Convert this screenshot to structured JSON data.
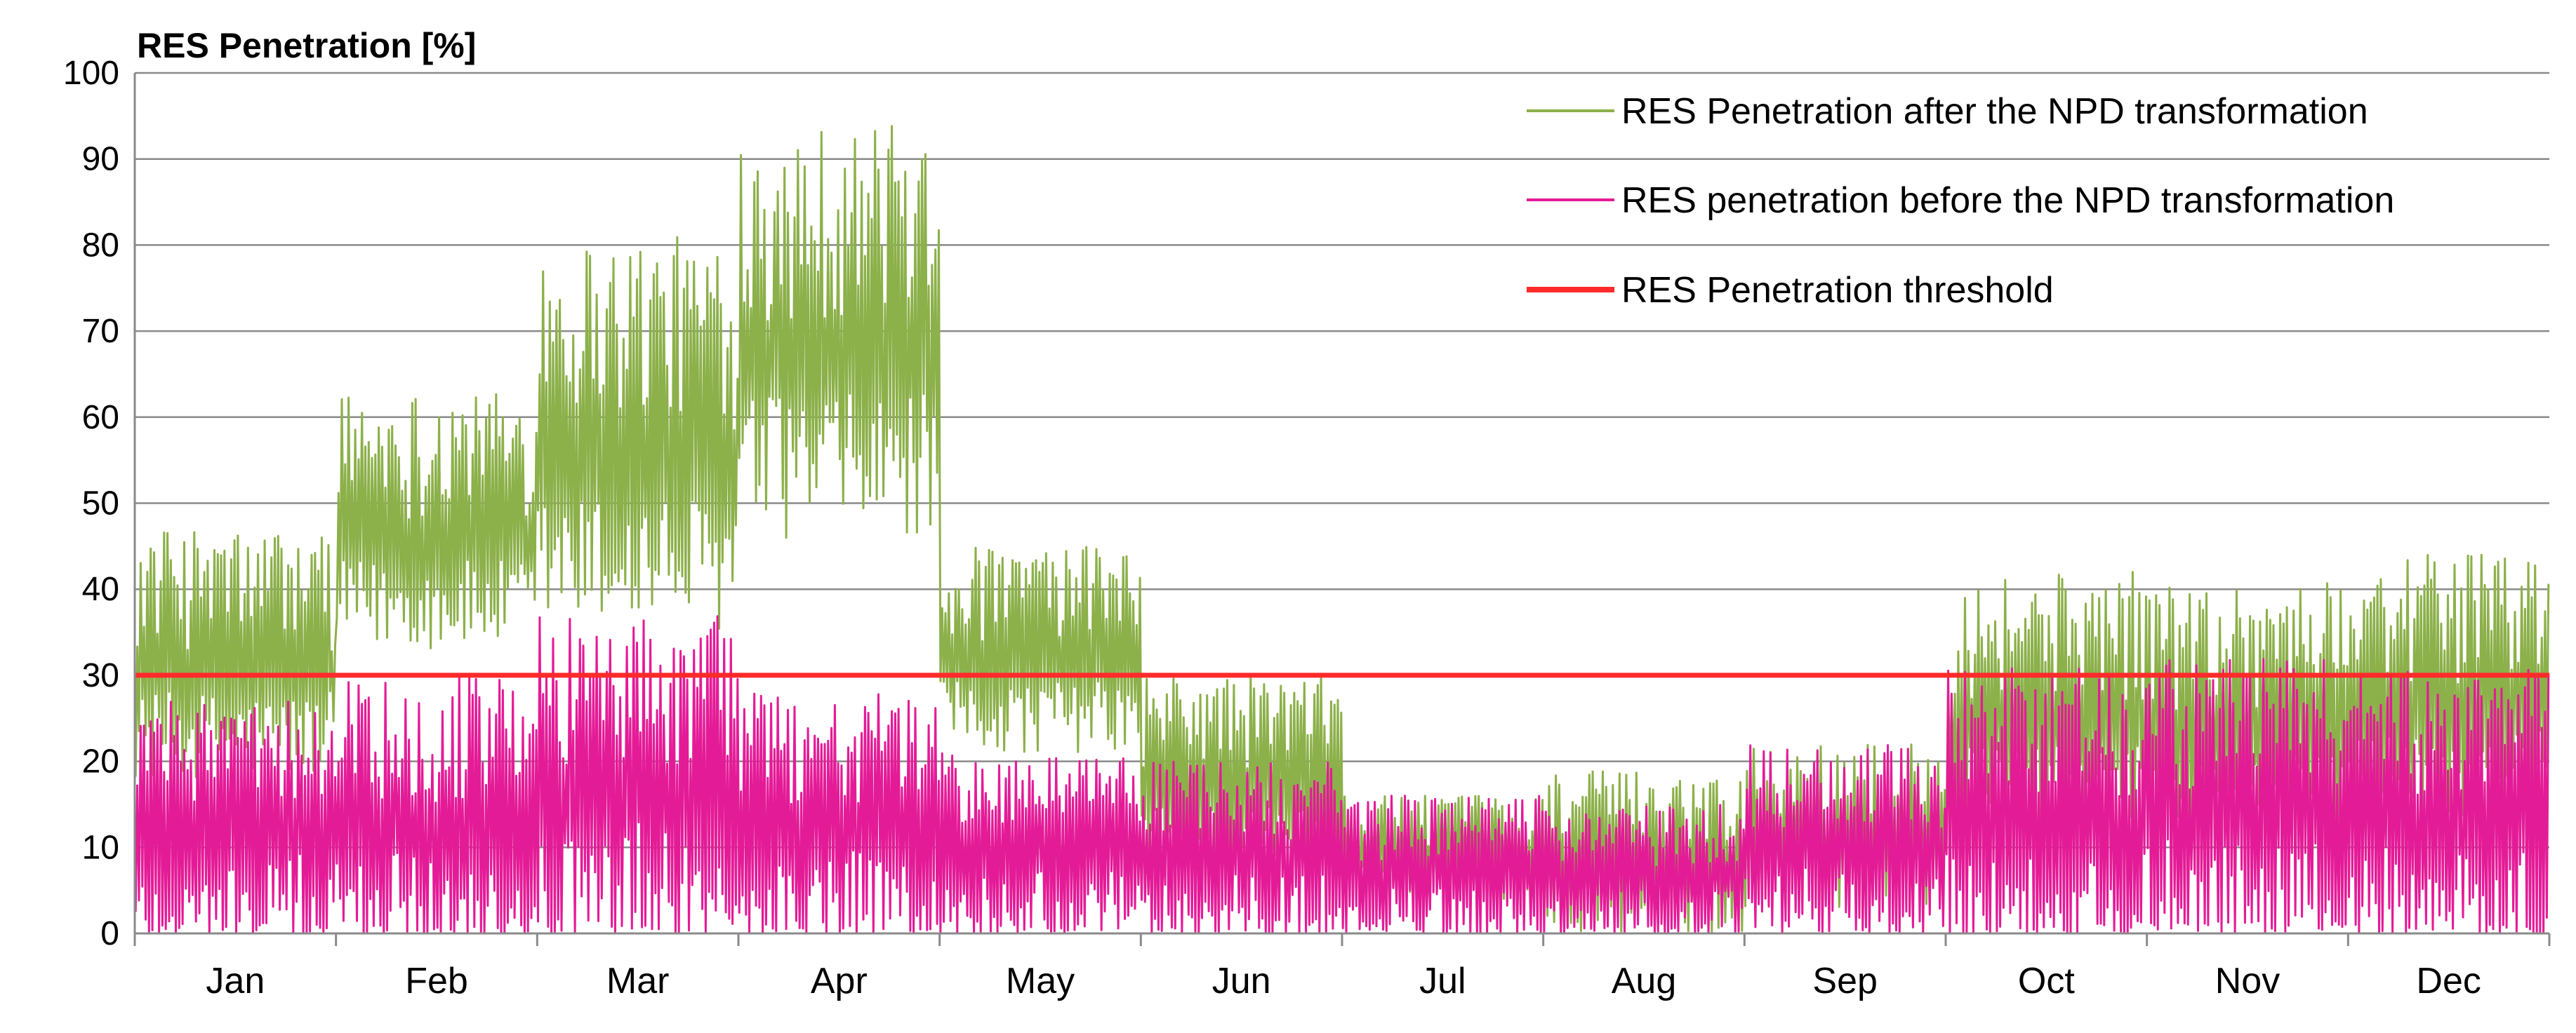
{
  "chart_data": {
    "type": "line",
    "ylabel": "RES Penetration [%]",
    "xlabel": "",
    "ylim": [
      0,
      100
    ],
    "yticks": [
      "0",
      "10",
      "20",
      "30",
      "40",
      "50",
      "60",
      "70",
      "80",
      "90",
      "100"
    ],
    "categories": [
      "Jan",
      "Feb",
      "Mar",
      "Apr",
      "May",
      "Jun",
      "Jul",
      "Aug",
      "Sep",
      "Oct",
      "Nov",
      "Dec"
    ],
    "grid": true,
    "legend_position": "top-right",
    "series": [
      {
        "name": "RES Penetration after the NPD transformation",
        "color": "#8CB04A",
        "monthly_range": [
          [
            18,
            47
          ],
          [
            33,
            63
          ],
          [
            35,
            81
          ],
          [
            46,
            94
          ],
          [
            21,
            45
          ],
          [
            7,
            30
          ],
          [
            4,
            16
          ],
          [
            0,
            19
          ],
          [
            3,
            22
          ],
          [
            11,
            42
          ],
          [
            10,
            41
          ],
          [
            13,
            44
          ]
        ]
      },
      {
        "name": "RES penetration before the NPD transformation",
        "color": "#E41B97",
        "monthly_range": [
          [
            0,
            27
          ],
          [
            0,
            30
          ],
          [
            0,
            37
          ],
          [
            0,
            28
          ],
          [
            0,
            21
          ],
          [
            0,
            20
          ],
          [
            0,
            16
          ],
          [
            0,
            15
          ],
          [
            0,
            22
          ],
          [
            0,
            31
          ],
          [
            0,
            32
          ],
          [
            0,
            31
          ]
        ]
      },
      {
        "name": "RES Penetration threshold",
        "color": "#FF2A2A",
        "values": [
          30,
          30,
          30,
          30,
          30,
          30,
          30,
          30,
          30,
          30,
          30,
          30
        ]
      }
    ]
  }
}
